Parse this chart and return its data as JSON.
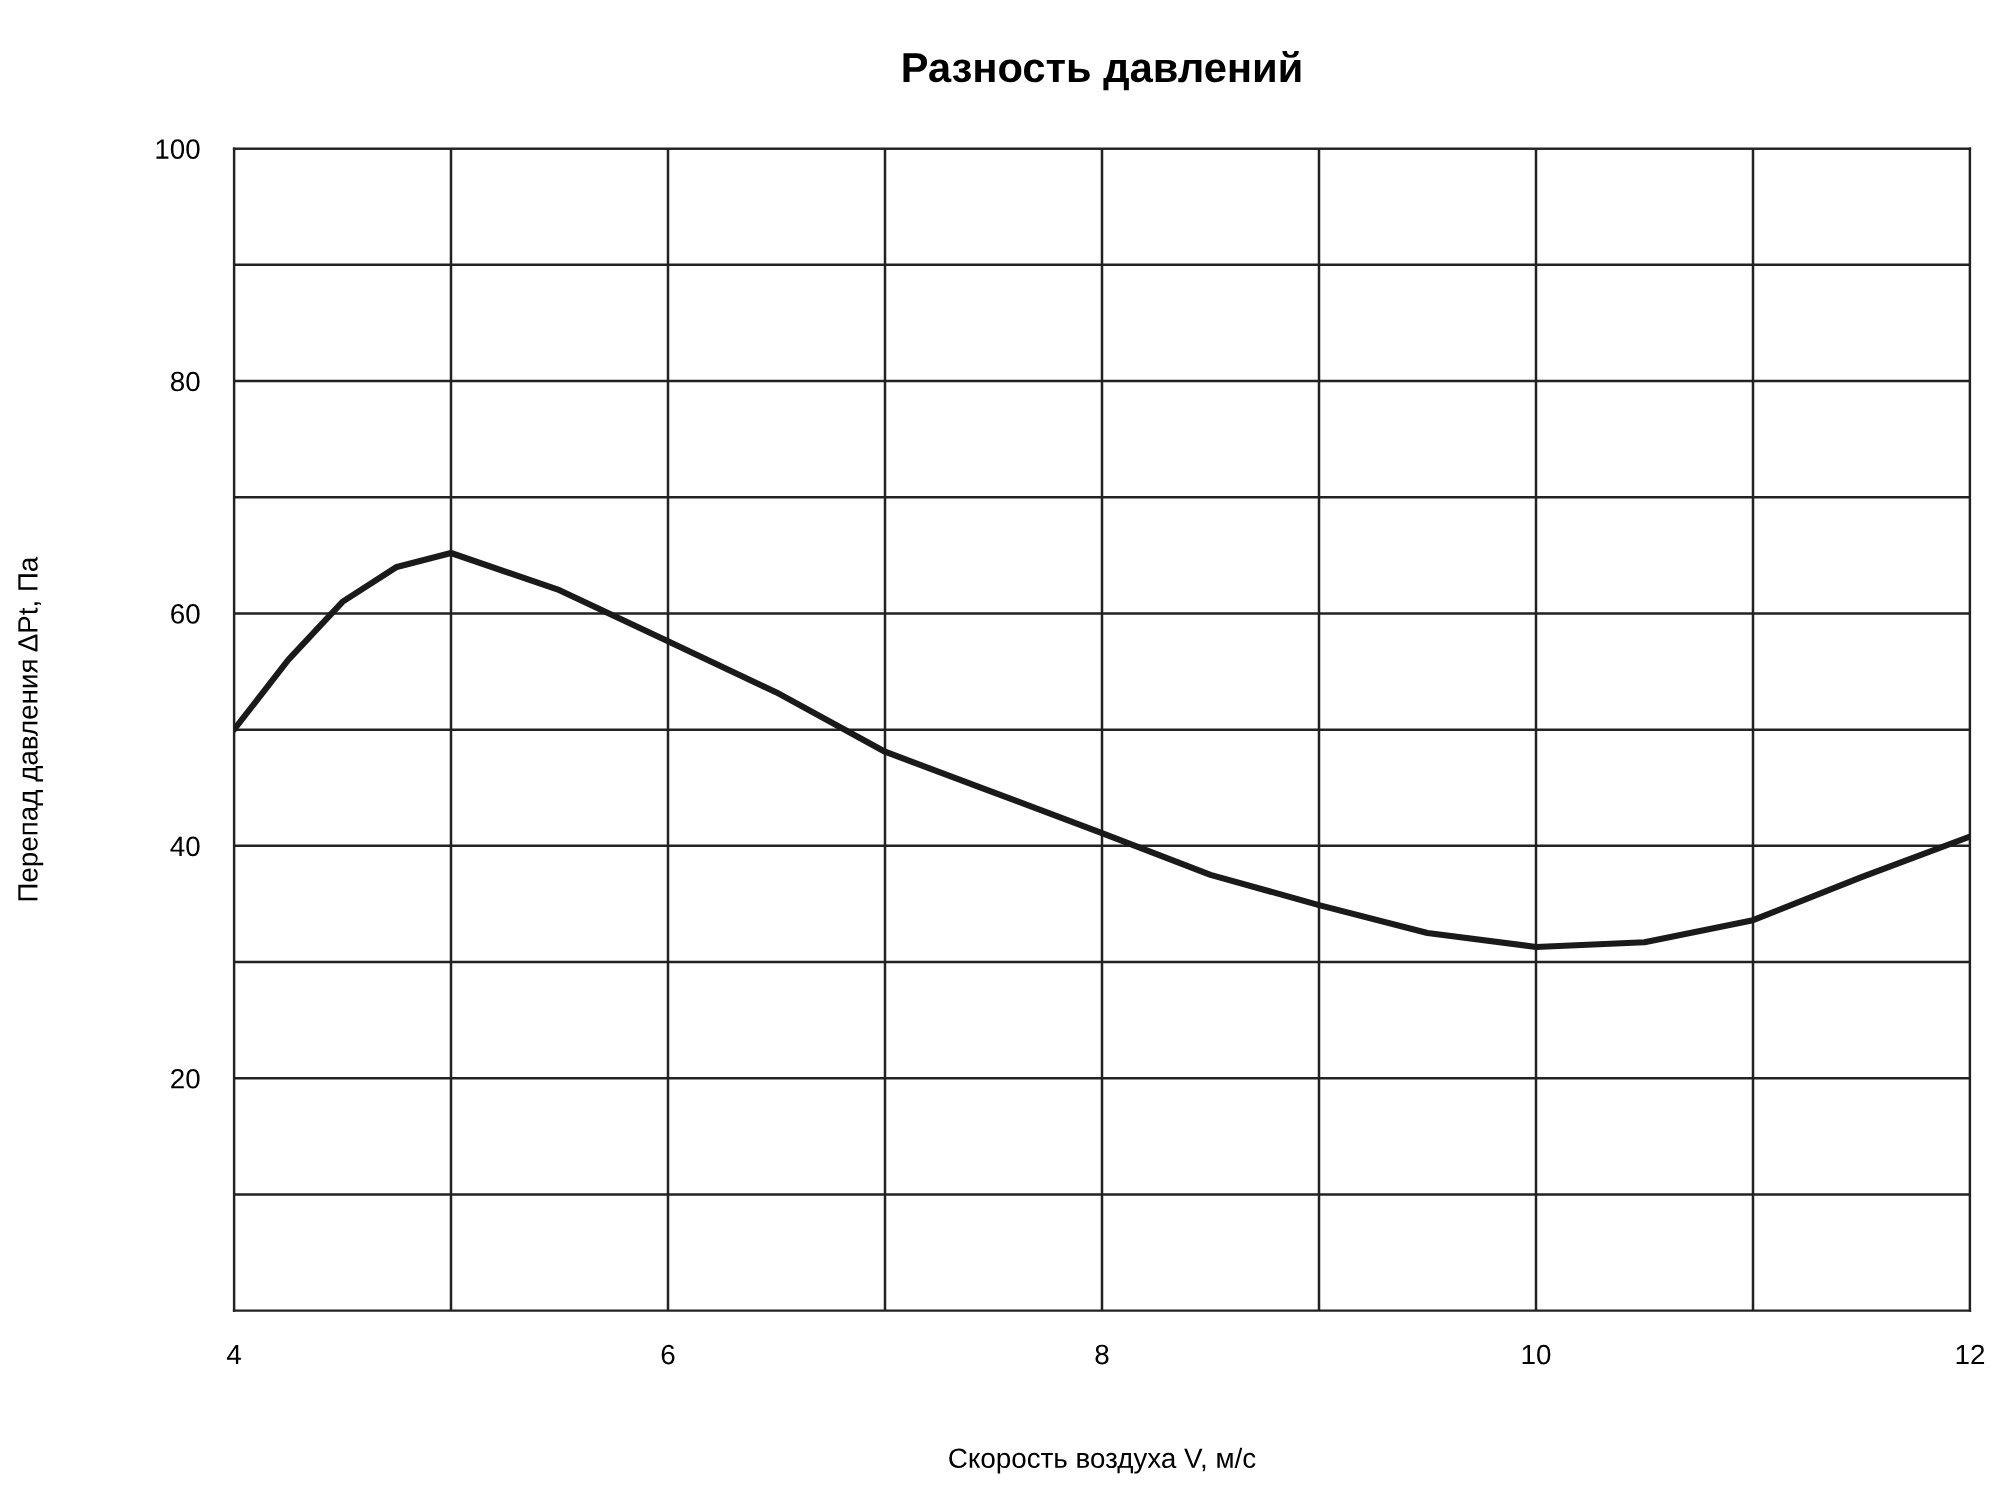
{
  "chart_data": {
    "type": "line",
    "title": "Разность давлений",
    "xlabel": "Скорость воздуха V, м/с",
    "ylabel": "Перепад давления ΔPt, Па",
    "series": [
      {
        "color": "#1a1a1a",
        "x": [
          4,
          4.25,
          4.5,
          4.75,
          5,
          5.5,
          6,
          6.5,
          7,
          7.5,
          8,
          8.5,
          9,
          9.5,
          10,
          10.5,
          11,
          11.5,
          12
        ],
        "values": [
          50,
          56,
          61,
          64,
          65.2,
          62,
          57.6,
          53.2,
          48.1,
          44.6,
          41.1,
          37.5,
          34.9,
          32.5,
          31.3,
          31.7,
          33.6,
          37.3,
          40.8
        ]
      }
    ],
    "xlim": [
      4,
      12
    ],
    "ylim": [
      0,
      100
    ],
    "xticks": [
      4,
      {
        "value": 5,
        "label": null
      },
      6,
      {
        "value": 7,
        "label": null
      },
      8,
      {
        "value": 9,
        "label": null
      },
      10,
      {
        "value": 11,
        "label": null
      },
      12
    ],
    "yticks": [
      {
        "value": 10,
        "label": null
      },
      20,
      {
        "value": 30,
        "label": null
      },
      40,
      {
        "value": 50,
        "label": null
      },
      60,
      {
        "value": 70,
        "label": null
      },
      80,
      {
        "value": 90,
        "label": null
      },
      100
    ],
    "grid": true,
    "legend": false,
    "marker": "none",
    "line_style": "solid"
  }
}
